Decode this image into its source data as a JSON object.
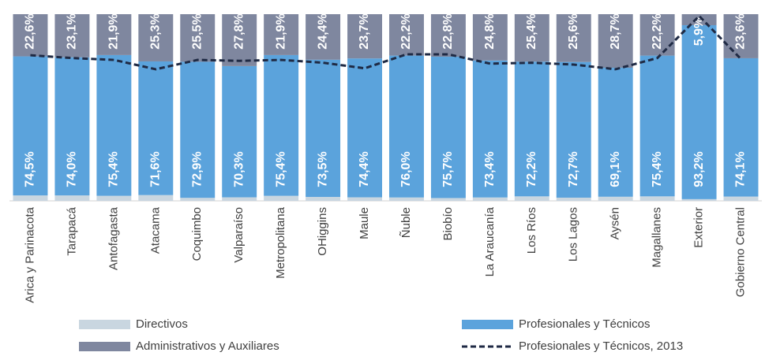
{
  "chart_data": {
    "type": "stacked-bar",
    "categories": [
      "Arica y Parinacota",
      "Tarapacá",
      "Antofagasta",
      "Atacama",
      "Coquimbo",
      "Valparaíso",
      "Metropolitana",
      "OHiggins",
      "Maule",
      "Ñuble",
      "Biobío",
      "La Araucanía",
      "Los Ríos",
      "Los Lagos",
      "Aysén",
      "Magallanes",
      "Exterior",
      "Gobierno Central"
    ],
    "ylim": [
      0,
      100
    ],
    "series": [
      {
        "name": "Directivos",
        "color": "#c9d6e0",
        "type": "bar",
        "values": [
          2.9,
          2.9,
          2.7,
          3.1,
          1.6,
          1.9,
          2.7,
          2.1,
          1.9,
          1.8,
          1.5,
          1.8,
          2.4,
          1.7,
          2.2,
          2.4,
          0.9,
          2.3
        ]
      },
      {
        "name": "Profesionales y Técnicos",
        "color": "#5ba3dc",
        "type": "bar",
        "values": [
          74.5,
          74.0,
          75.4,
          71.6,
          72.9,
          70.3,
          75.4,
          73.5,
          74.4,
          76.0,
          75.7,
          73.4,
          72.2,
          72.7,
          69.1,
          75.4,
          93.2,
          74.1
        ],
        "value_labels": [
          "74,5%",
          "74,0%",
          "75,4%",
          "71,6%",
          "72,9%",
          "70,3%",
          "75,4%",
          "73,5%",
          "74,4%",
          "76,0%",
          "75,7%",
          "73,4%",
          "72,2%",
          "72,7%",
          "69,1%",
          "75,4%",
          "93,2%",
          "74,1%"
        ]
      },
      {
        "name": "Administrativos y Auxiliares",
        "color": "#7f879f",
        "type": "bar",
        "values": [
          22.6,
          23.1,
          21.9,
          25.3,
          25.5,
          27.8,
          21.9,
          24.4,
          23.7,
          22.2,
          22.8,
          24.8,
          25.4,
          25.6,
          28.7,
          22.2,
          5.9,
          23.6
        ],
        "value_labels": [
          "22,6%",
          "23,1%",
          "21,9%",
          "25,3%",
          "25,5%",
          "27,8%",
          "21,9%",
          "24,4%",
          "23,7%",
          "22,2%",
          "22,8%",
          "24,8%",
          "25,4%",
          "25,6%",
          "28,7%",
          "22,2%",
          "5,9%",
          "23,6%"
        ]
      },
      {
        "name": "Profesionales y Técnicos, 2013",
        "color": "#1f2a44",
        "type": "line",
        "values": [
          78,
          76.5,
          75.5,
          70.5,
          75.5,
          75,
          75.5,
          74,
          71,
          78.5,
          78.5,
          73.5,
          74,
          73,
          70.5,
          76.5,
          99,
          76
        ]
      }
    ]
  }
}
